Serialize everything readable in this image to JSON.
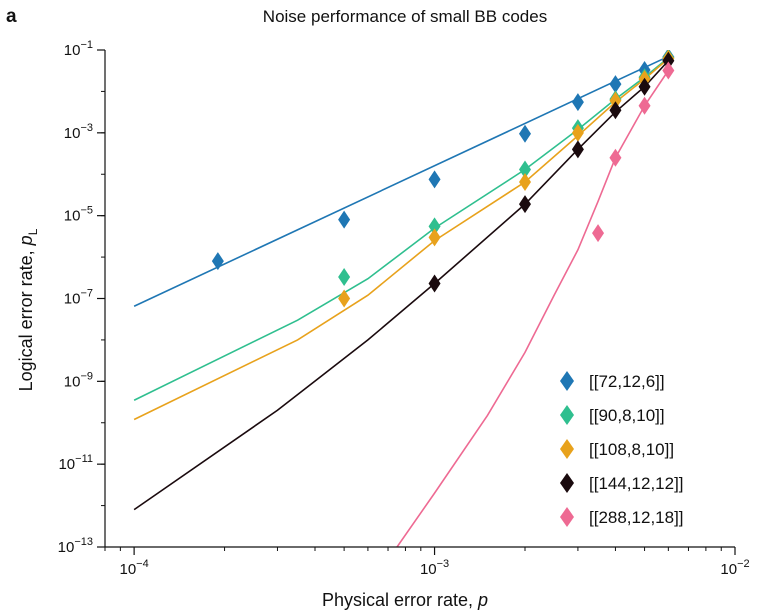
{
  "panel_label": "a",
  "chart_data": {
    "type": "line",
    "title": "Noise performance of small BB codes",
    "xlabel": "Physical error rate, ",
    "xlabel_var": "p",
    "ylabel": "Logical error rate, ",
    "ylabel_var": "p",
    "ylabel_sub": "L",
    "x_scale": "log",
    "y_scale": "log",
    "xlim": [
      8e-05,
      0.01
    ],
    "ylim": [
      1e-13,
      0.1
    ],
    "x_ticks": [
      {
        "value": 0.0001,
        "base": "10",
        "exp": "−4"
      },
      {
        "value": 0.001,
        "base": "10",
        "exp": "−3"
      },
      {
        "value": 0.01,
        "base": "10",
        "exp": "−2"
      }
    ],
    "y_ticks": [
      {
        "value": 1e-13,
        "base": "10",
        "exp": "−13"
      },
      {
        "value": 1e-11,
        "base": "10",
        "exp": "−11"
      },
      {
        "value": 1e-09,
        "base": "10",
        "exp": "−9"
      },
      {
        "value": 1e-07,
        "base": "10",
        "exp": "−7"
      },
      {
        "value": 1e-05,
        "base": "10",
        "exp": "−5"
      },
      {
        "value": 0.001,
        "base": "10",
        "exp": "−3"
      },
      {
        "value": 0.1,
        "base": "10",
        "exp": "−1"
      }
    ],
    "grid": false,
    "legend_position": "bottom-right",
    "series": [
      {
        "name": "[[72,12,6]]",
        "color": "#1f77b4",
        "points": [
          [
            0.00019,
            8e-07
          ],
          [
            0.0005,
            8e-06
          ],
          [
            0.001,
            7.5e-05
          ],
          [
            0.002,
            0.00095
          ],
          [
            0.003,
            0.0055
          ],
          [
            0.004,
            0.015
          ],
          [
            0.005,
            0.033
          ],
          [
            0.006,
            0.068
          ]
        ],
        "fit": [
          [
            0.0001,
            6.5e-08
          ],
          [
            0.006,
            0.07
          ]
        ]
      },
      {
        "name": "[[90,8,10]]",
        "color": "#2fbf8f",
        "points": [
          [
            0.0005,
            3.3e-07
          ],
          [
            0.001,
            5.5e-06
          ],
          [
            0.002,
            0.00013
          ],
          [
            0.003,
            0.0013
          ],
          [
            0.004,
            0.0065
          ],
          [
            0.005,
            0.022
          ],
          [
            0.006,
            0.065
          ]
        ],
        "fit": [
          [
            0.0001,
            3.5e-10
          ],
          [
            0.00035,
            3e-08
          ],
          [
            0.0006,
            3e-07
          ],
          [
            0.001,
            5e-06
          ],
          [
            0.002,
            0.00013
          ],
          [
            0.003,
            0.0012
          ],
          [
            0.004,
            0.0065
          ],
          [
            0.005,
            0.022
          ],
          [
            0.006,
            0.065
          ]
        ]
      },
      {
        "name": "[[108,8,10]]",
        "color": "#e8a21c",
        "points": [
          [
            0.0005,
            1e-07
          ],
          [
            0.001,
            3e-06
          ],
          [
            0.002,
            6.5e-05
          ],
          [
            0.003,
            0.001
          ],
          [
            0.004,
            0.006
          ],
          [
            0.005,
            0.02
          ],
          [
            0.006,
            0.062
          ]
        ],
        "fit": [
          [
            0.0001,
            1.2e-10
          ],
          [
            0.00035,
            1e-08
          ],
          [
            0.0006,
            1.2e-07
          ],
          [
            0.001,
            2.5e-06
          ],
          [
            0.002,
            6.5e-05
          ],
          [
            0.003,
            0.00085
          ],
          [
            0.004,
            0.0055
          ],
          [
            0.005,
            0.02
          ],
          [
            0.006,
            0.062
          ]
        ]
      },
      {
        "name": "[[144,12,12]]",
        "color": "#1a0a0e",
        "points": [
          [
            0.001,
            2.3e-07
          ],
          [
            0.002,
            1.9e-05
          ],
          [
            0.003,
            0.0004
          ],
          [
            0.004,
            0.0035
          ],
          [
            0.005,
            0.013
          ],
          [
            0.006,
            0.055
          ]
        ],
        "fit": [
          [
            0.0001,
            8e-13
          ],
          [
            0.0003,
            2e-10
          ],
          [
            0.0006,
            1e-08
          ],
          [
            0.001,
            2.3e-07
          ],
          [
            0.002,
            1.9e-05
          ],
          [
            0.003,
            0.0004
          ],
          [
            0.004,
            0.0032
          ],
          [
            0.005,
            0.013
          ],
          [
            0.006,
            0.055
          ]
        ]
      },
      {
        "name": "[[288,12,18]]",
        "color": "#ee6a93",
        "points": [
          [
            0.0035,
            3.8e-06
          ],
          [
            0.004,
            0.00025
          ],
          [
            0.005,
            0.0045
          ],
          [
            0.006,
            0.032
          ]
        ],
        "fit": [
          [
            0.00075,
            1e-13
          ],
          [
            0.001,
            2e-12
          ],
          [
            0.0015,
            1.5e-10
          ],
          [
            0.002,
            5e-09
          ],
          [
            0.0025,
            1.2e-07
          ],
          [
            0.003,
            1.5e-06
          ],
          [
            0.0035,
            2.2e-05
          ],
          [
            0.004,
            0.00025
          ],
          [
            0.005,
            0.0045
          ],
          [
            0.006,
            0.032
          ]
        ]
      }
    ]
  }
}
